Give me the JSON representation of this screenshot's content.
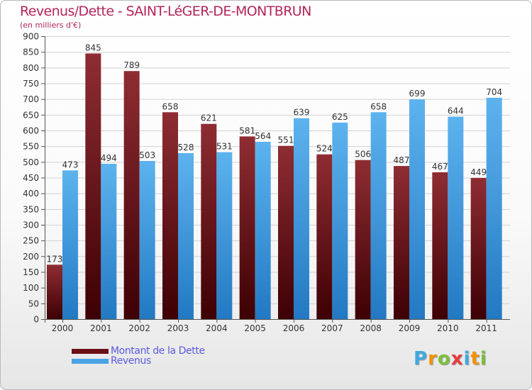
{
  "chart_data": {
    "type": "bar",
    "title": "Revenus/Dette - SAINT-LéGER-DE-MONTBRUN",
    "subtitle": "(en milliers d'€)",
    "categories": [
      "2000",
      "2001",
      "2002",
      "2003",
      "2004",
      "2005",
      "2006",
      "2007",
      "2008",
      "2009",
      "2010",
      "2011"
    ],
    "series": [
      {
        "name": "Montant de la Dette",
        "color": "#7a1c22",
        "values": [
          173,
          845,
          789,
          658,
          621,
          581,
          551,
          524,
          506,
          487,
          467,
          449
        ]
      },
      {
        "name": "Revenus",
        "color": "#4aa3e4",
        "values": [
          473,
          494,
          503,
          528,
          531,
          564,
          639,
          625,
          658,
          699,
          644,
          704
        ]
      }
    ],
    "ylim": [
      0,
      900
    ],
    "yticks": [
      0,
      50,
      100,
      150,
      200,
      250,
      300,
      350,
      400,
      450,
      500,
      550,
      600,
      650,
      700,
      750,
      800,
      850,
      900
    ],
    "grid": true,
    "legend": "bottom-left"
  },
  "logo": {
    "letters": [
      "P",
      "r",
      "o",
      "x",
      "i",
      "t",
      "i"
    ],
    "colors": [
      "#3fa9e0",
      "#f39200",
      "#7bbf3a",
      "#e73c3c",
      "#3fa9e0",
      "#f39200",
      "#7bbf3a"
    ]
  }
}
